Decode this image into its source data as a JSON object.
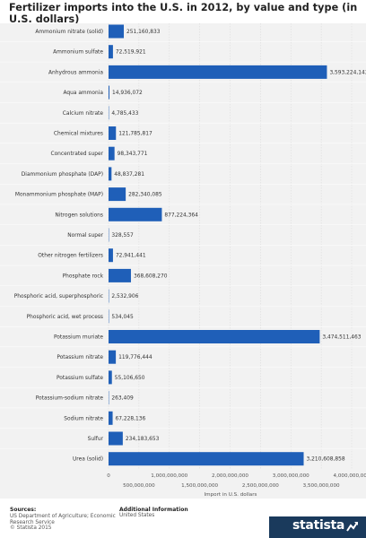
{
  "title": "Fertilizer imports into the U.S. in 2012, by value and type (in U.S. dollars)",
  "chart_data": {
    "type": "bar",
    "orientation": "horizontal",
    "categories": [
      "Ammonium nitrate (solid)",
      "Ammonium sulfate",
      "Anhydrous ammonia",
      "Aqua ammonia",
      "Calcium nitrate",
      "Chemical mixtures",
      "Concentrated super",
      "Diammonium phosphate (DAP)",
      "Monammonium phosphate (MAP)",
      "Nitrogen solutions",
      "Normal super",
      "Other nitrogen fertilizers",
      "Phosphate rock",
      "Phosphoric acid, superphosphoric",
      "Phosphoric acid, wet process",
      "Potassium muriate",
      "Potassium nitrate",
      "Potassium sulfate",
      "Potassium-sodium nitrate",
      "Sodium nitrate",
      "Sulfur",
      "Urea (solid)"
    ],
    "values": [
      251160833,
      72519921,
      3593224143,
      14936072,
      4785433,
      121785817,
      98343771,
      48837281,
      282340085,
      877224364,
      328557,
      72941441,
      368608270,
      2532906,
      534045,
      3474511463,
      119776444,
      55106650,
      263409,
      67228136,
      234183653,
      3210608858
    ],
    "value_labels": [
      "251,160,833",
      "72,519,921",
      "3,593,224,143",
      "14,936,072",
      "4,785,433",
      "121,785,817",
      "98,343,771",
      "48,837,281",
      "282,340,085",
      "877,224,364",
      "328,557",
      "72,941,441",
      "368,608,270",
      "2,532,906",
      "534,045",
      "3,474,511,463",
      "119,776,444",
      "55,106,650",
      "263,409",
      "67,228,136",
      "234,183,653",
      "3,210,608,858"
    ],
    "xlim": [
      0,
      4000000000
    ],
    "ticks_upper": [
      {
        "value": 0,
        "label": "0"
      },
      {
        "value": 1000000000,
        "label": "1,000,000,000"
      },
      {
        "value": 2000000000,
        "label": "2,000,000,000"
      },
      {
        "value": 3000000000,
        "label": "3,000,000,000"
      },
      {
        "value": 4000000000,
        "label": "4,000,000,000"
      }
    ],
    "ticks_lower": [
      {
        "value": 500000000,
        "label": "500,000,000"
      },
      {
        "value": 1500000000,
        "label": "1,500,000,000"
      },
      {
        "value": 2500000000,
        "label": "2,500,000,000"
      },
      {
        "value": 3500000000,
        "label": "3,500,000,000"
      }
    ],
    "xlabel": "Import in U.S. dollars",
    "grid": true,
    "bar_color": "#1f5fb8"
  },
  "footer": {
    "sources_title": "Sources:",
    "sources_text": "US Department of Agriculture; Economic Research Service",
    "copyright": "© Statista 2015",
    "additional_title": "Additional Information",
    "additional_text": "United States",
    "brand": "statista"
  }
}
